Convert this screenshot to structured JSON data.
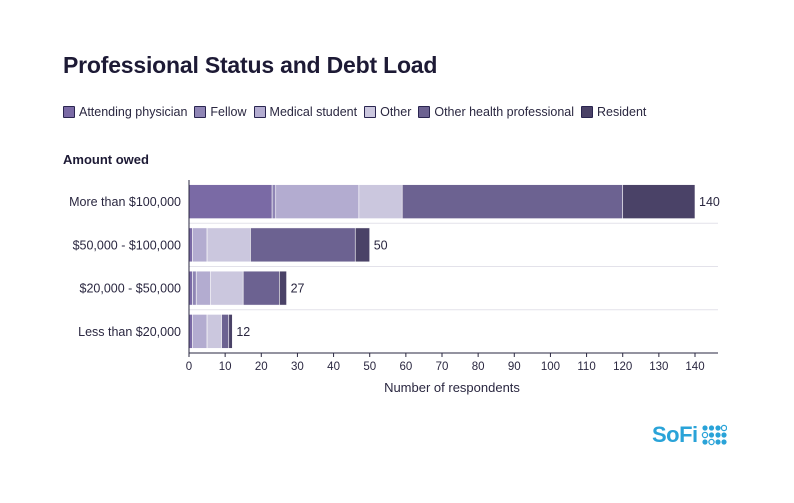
{
  "chart_data": {
    "type": "bar",
    "orientation": "horizontal",
    "stacked": true,
    "title": "Professional Status and Debt Load",
    "category_axis_title": "Amount owed",
    "xlabel": "Number of respondents",
    "xlim": [
      0,
      140
    ],
    "xticks": [
      0,
      10,
      20,
      30,
      40,
      50,
      60,
      70,
      80,
      90,
      100,
      110,
      120,
      130,
      140
    ],
    "categories": [
      "More than $100,000",
      "$50,000 - $100,000",
      "$20,000 - $50,000",
      "Less than $20,000"
    ],
    "totals": [
      140,
      50,
      27,
      12
    ],
    "legend_position": "top",
    "grid": "horizontal separators",
    "series": [
      {
        "name": "Attending physician",
        "color": "#7a6aa5",
        "values": [
          23,
          1,
          1,
          1
        ]
      },
      {
        "name": "Fellow",
        "color": "#8f85b5",
        "values": [
          1,
          0,
          1,
          0
        ]
      },
      {
        "name": "Medical student",
        "color": "#b3acd0",
        "values": [
          23,
          4,
          4,
          4
        ]
      },
      {
        "name": "Other",
        "color": "#cbc7de",
        "values": [
          12,
          12,
          9,
          4
        ]
      },
      {
        "name": "Other health professional",
        "color": "#6c6291",
        "values": [
          61,
          29,
          10,
          2
        ]
      },
      {
        "name": "Resident",
        "color": "#4a4267",
        "values": [
          20,
          4,
          2,
          1
        ]
      }
    ]
  },
  "brand": {
    "name": "SoFi",
    "color": "#2aa3d8"
  }
}
